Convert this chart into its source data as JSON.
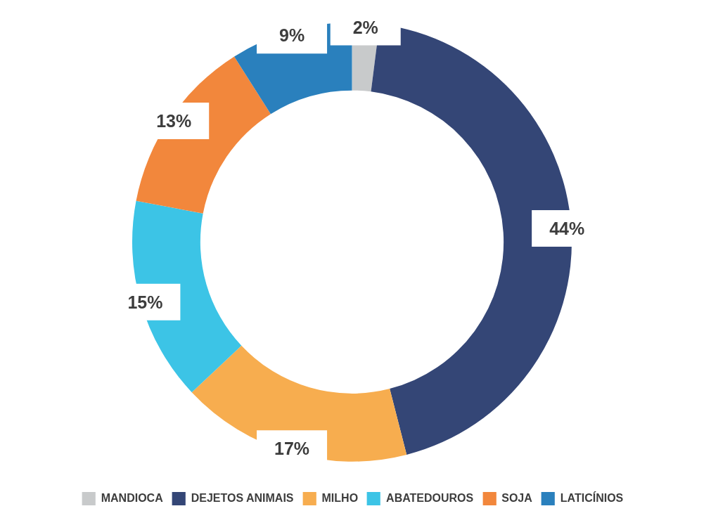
{
  "chart_data": {
    "type": "donut",
    "categories": [
      "MANDIOCA",
      "DEJETOS ANIMAIS",
      "MILHO",
      "ABATEDOUROS",
      "SOJA",
      "LATICÍNIOS"
    ],
    "values": [
      2,
      44,
      17,
      15,
      13,
      9
    ],
    "value_labels": [
      "2%",
      "44%",
      "17%",
      "15%",
      "13%",
      "9%"
    ],
    "colors": [
      "#c8cacb",
      "#344676",
      "#f7ad4f",
      "#3cc4e6",
      "#f2873c",
      "#2a80bd"
    ],
    "legend": "bottom"
  }
}
